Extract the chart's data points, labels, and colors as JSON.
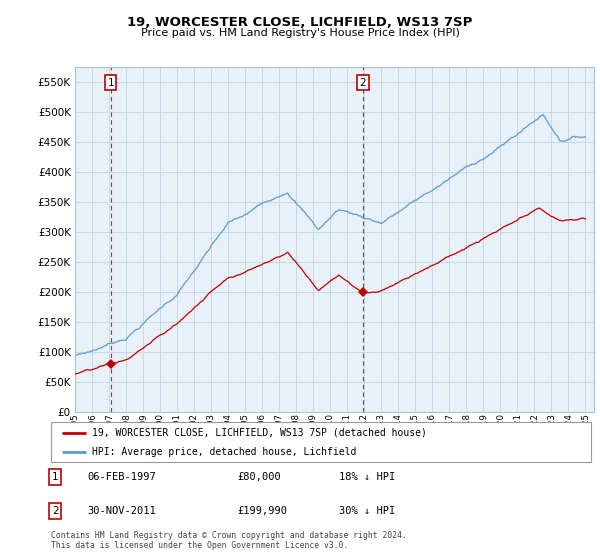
{
  "title": "19, WORCESTER CLOSE, LICHFIELD, WS13 7SP",
  "subtitle": "Price paid vs. HM Land Registry's House Price Index (HPI)",
  "ytick_values": [
    0,
    50000,
    100000,
    150000,
    200000,
    250000,
    300000,
    350000,
    400000,
    450000,
    500000,
    550000
  ],
  "ylim": [
    0,
    575000
  ],
  "xlim_start": 1995.3,
  "xlim_end": 2025.5,
  "sale1_year": 1997.1,
  "sale1_price": 80000,
  "sale1_label": "1",
  "sale1_date": "06-FEB-1997",
  "sale1_hpi_diff": "18% ↓ HPI",
  "sale2_year": 2011.92,
  "sale2_price": 199990,
  "sale2_label": "2",
  "sale2_date": "30-NOV-2011",
  "sale2_hpi_diff": "30% ↓ HPI",
  "hpi_color": "#5b9bd5",
  "property_color": "#c00000",
  "marker_color": "#c00000",
  "grid_color": "#c8d8e8",
  "plot_bg_color": "#e8f0f8",
  "background_color": "#ffffff",
  "legend_label_property": "19, WORCESTER CLOSE, LICHFIELD, WS13 7SP (detached house)",
  "legend_label_hpi": "HPI: Average price, detached house, Lichfield",
  "footnote": "Contains HM Land Registry data © Crown copyright and database right 2024.\nThis data is licensed under the Open Government Licence v3.0."
}
